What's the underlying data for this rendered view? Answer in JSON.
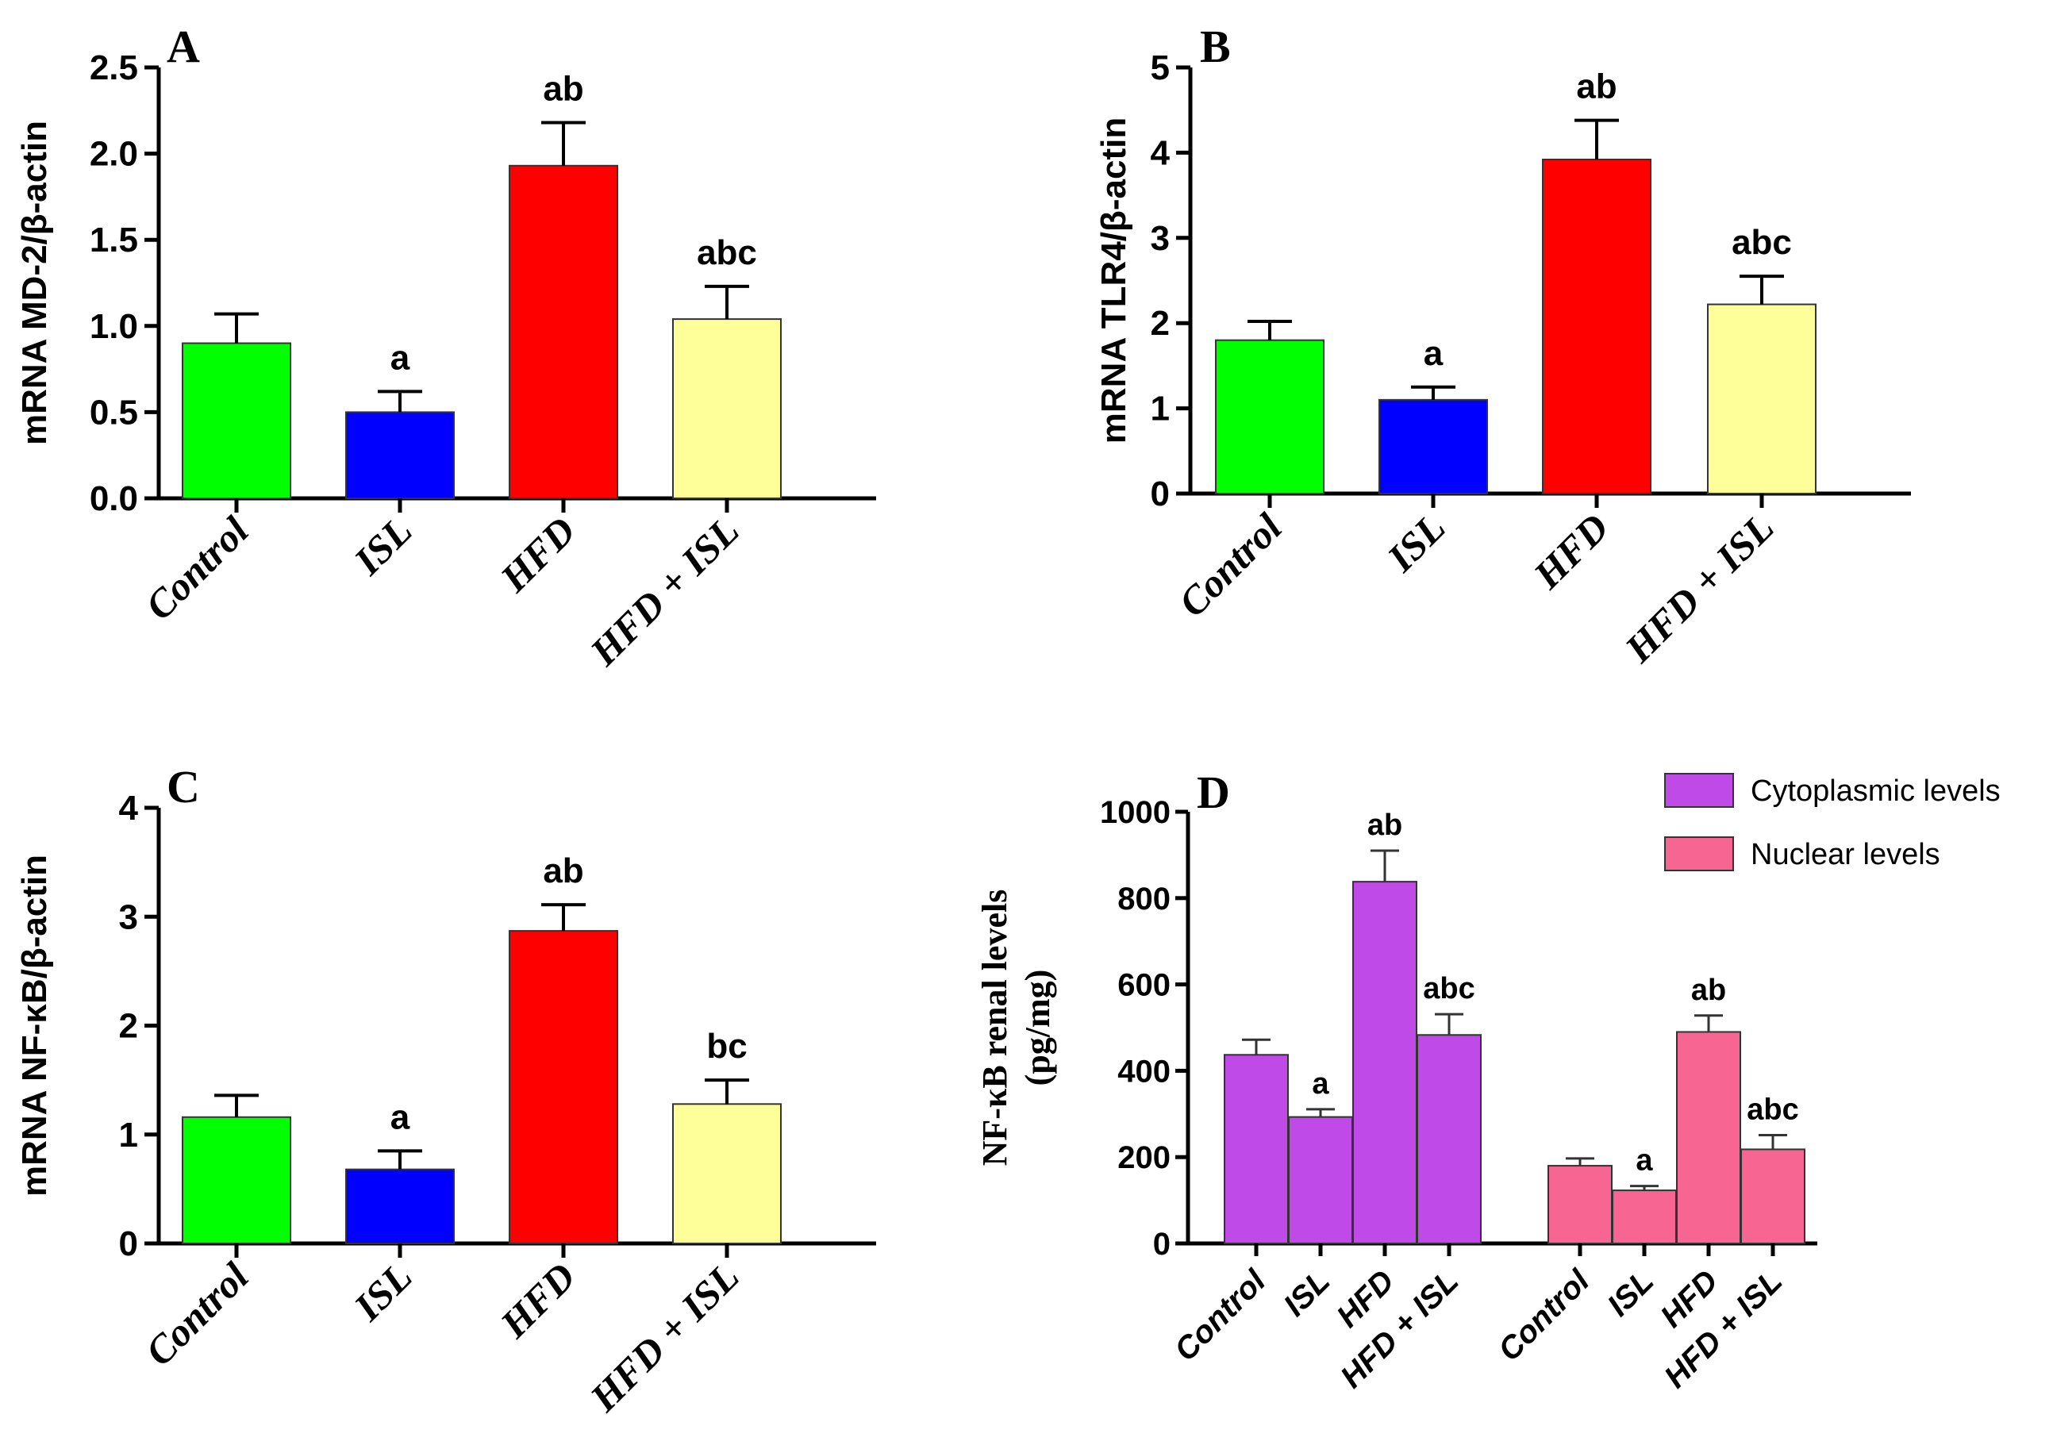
{
  "figure": {
    "title": ""
  },
  "chart_data": [
    {
      "panel": "A",
      "type": "bar",
      "ylabel": "mRNA MD-2/β-actin",
      "xlabel": "",
      "ylim": [
        0,
        2.5
      ],
      "yticks": [
        "0.0",
        "0.5",
        "1.0",
        "1.5",
        "2.0",
        "2.5"
      ],
      "categories": [
        "Control",
        "ISL",
        "HFD",
        "HFD + ISL"
      ],
      "values": [
        0.9,
        0.5,
        1.93,
        1.04
      ],
      "errors": [
        0.17,
        0.12,
        0.25,
        0.19
      ],
      "annotations": [
        "",
        "a",
        "ab",
        "abc"
      ],
      "colors": [
        "#00ff00",
        "#0000ff",
        "#ff0000",
        "#ffff99"
      ]
    },
    {
      "panel": "B",
      "type": "bar",
      "ylabel": "mRNA TLR4/β-actin",
      "xlabel": "",
      "ylim": [
        0,
        5
      ],
      "yticks": [
        "0",
        "1",
        "2",
        "3",
        "4",
        "5"
      ],
      "categories": [
        "Control",
        "ISL",
        "HFD",
        "HFD + ISL"
      ],
      "values": [
        1.8,
        1.1,
        3.92,
        2.22
      ],
      "errors": [
        0.22,
        0.15,
        0.46,
        0.33
      ],
      "annotations": [
        "",
        "a",
        "ab",
        "abc"
      ],
      "colors": [
        "#00ff00",
        "#0000ff",
        "#ff0000",
        "#ffff99"
      ]
    },
    {
      "panel": "C",
      "type": "bar",
      "ylabel": "mRNA NF-κB/β-actin",
      "xlabel": "",
      "ylim": [
        0,
        4
      ],
      "yticks": [
        "0",
        "1",
        "2",
        "3",
        "4"
      ],
      "categories": [
        "Control",
        "ISL",
        "HFD",
        "HFD + ISL"
      ],
      "values": [
        1.16,
        0.68,
        2.87,
        1.28
      ],
      "errors": [
        0.2,
        0.17,
        0.24,
        0.22
      ],
      "annotations": [
        "",
        "a",
        "ab",
        "bc"
      ],
      "colors": [
        "#00ff00",
        "#0000ff",
        "#ff0000",
        "#ffff99"
      ]
    },
    {
      "panel": "D",
      "type": "bar",
      "ylabel_line1": "NF-κB renal levels",
      "ylabel_line2": "(pg/mg)",
      "xlabel": "",
      "ylim": [
        0,
        1000
      ],
      "yticks": [
        "0",
        "200",
        "400",
        "600",
        "800",
        "1000"
      ],
      "categories": [
        "Control",
        "ISL",
        "HFD",
        "HFD + ISL"
      ],
      "series": [
        {
          "name": "Cytoplasmic levels",
          "color": "#c04ae8",
          "values": [
            437,
            293,
            838,
            483
          ],
          "errors": [
            35,
            18,
            72,
            48
          ],
          "annotations": [
            "",
            "a",
            "ab",
            "abc"
          ]
        },
        {
          "name": "Nuclear levels",
          "color": "#f76592",
          "values": [
            180,
            123,
            490,
            218
          ],
          "errors": [
            17,
            10,
            38,
            33
          ],
          "annotations": [
            "",
            "a",
            "ab",
            "abc"
          ]
        }
      ],
      "legend_position": "top-right"
    }
  ]
}
